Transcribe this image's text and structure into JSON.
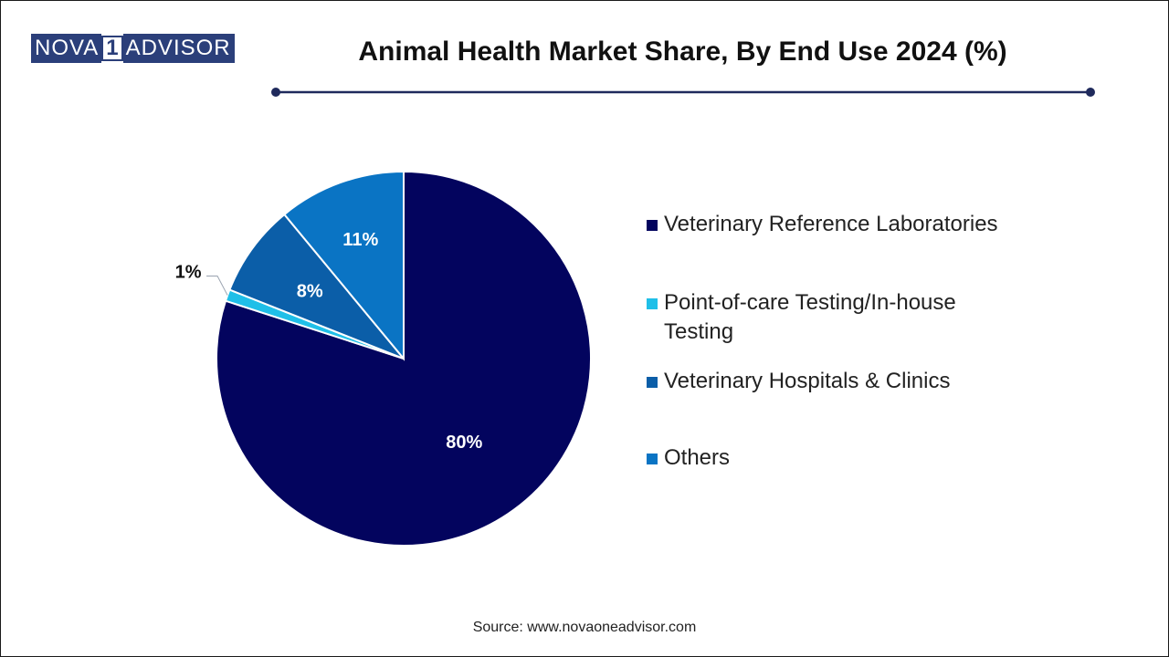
{
  "brand": {
    "left": "NOVA",
    "mid": "1",
    "right": "ADVISOR"
  },
  "colors": {
    "brand": "#2b3f7a",
    "title_rule": "#1f2a5c",
    "veterinary_reference_laboratories": "#03045e",
    "point_of_care": "#1fbfe8",
    "veterinary_hospitals": "#0b5ea8",
    "others": "#0a74c4"
  },
  "source": "Source: www.novaoneadvisor.com",
  "chart_data": {
    "type": "pie",
    "title": "Animal Health Market Share, By End Use 2024 (%)",
    "slices": [
      {
        "label": "Veterinary Reference Laboratories",
        "value": 80,
        "data_label": "80%",
        "color": "#03045e",
        "label_color": "#ffffff"
      },
      {
        "label": "Point-of-care Testing/In-house Testing",
        "value": 1,
        "data_label": "1%",
        "color": "#1fbfe8",
        "label_color": "#111111"
      },
      {
        "label": "Veterinary Hospitals & Clinics",
        "value": 8,
        "data_label": "8%",
        "color": "#0b5ea8",
        "label_color": "#ffffff"
      },
      {
        "label": "Others",
        "value": 11,
        "data_label": "11%",
        "color": "#0a74c4",
        "label_color": "#ffffff"
      }
    ],
    "start": "12 o'clock",
    "direction": "clockwise",
    "legend_position": "right"
  }
}
